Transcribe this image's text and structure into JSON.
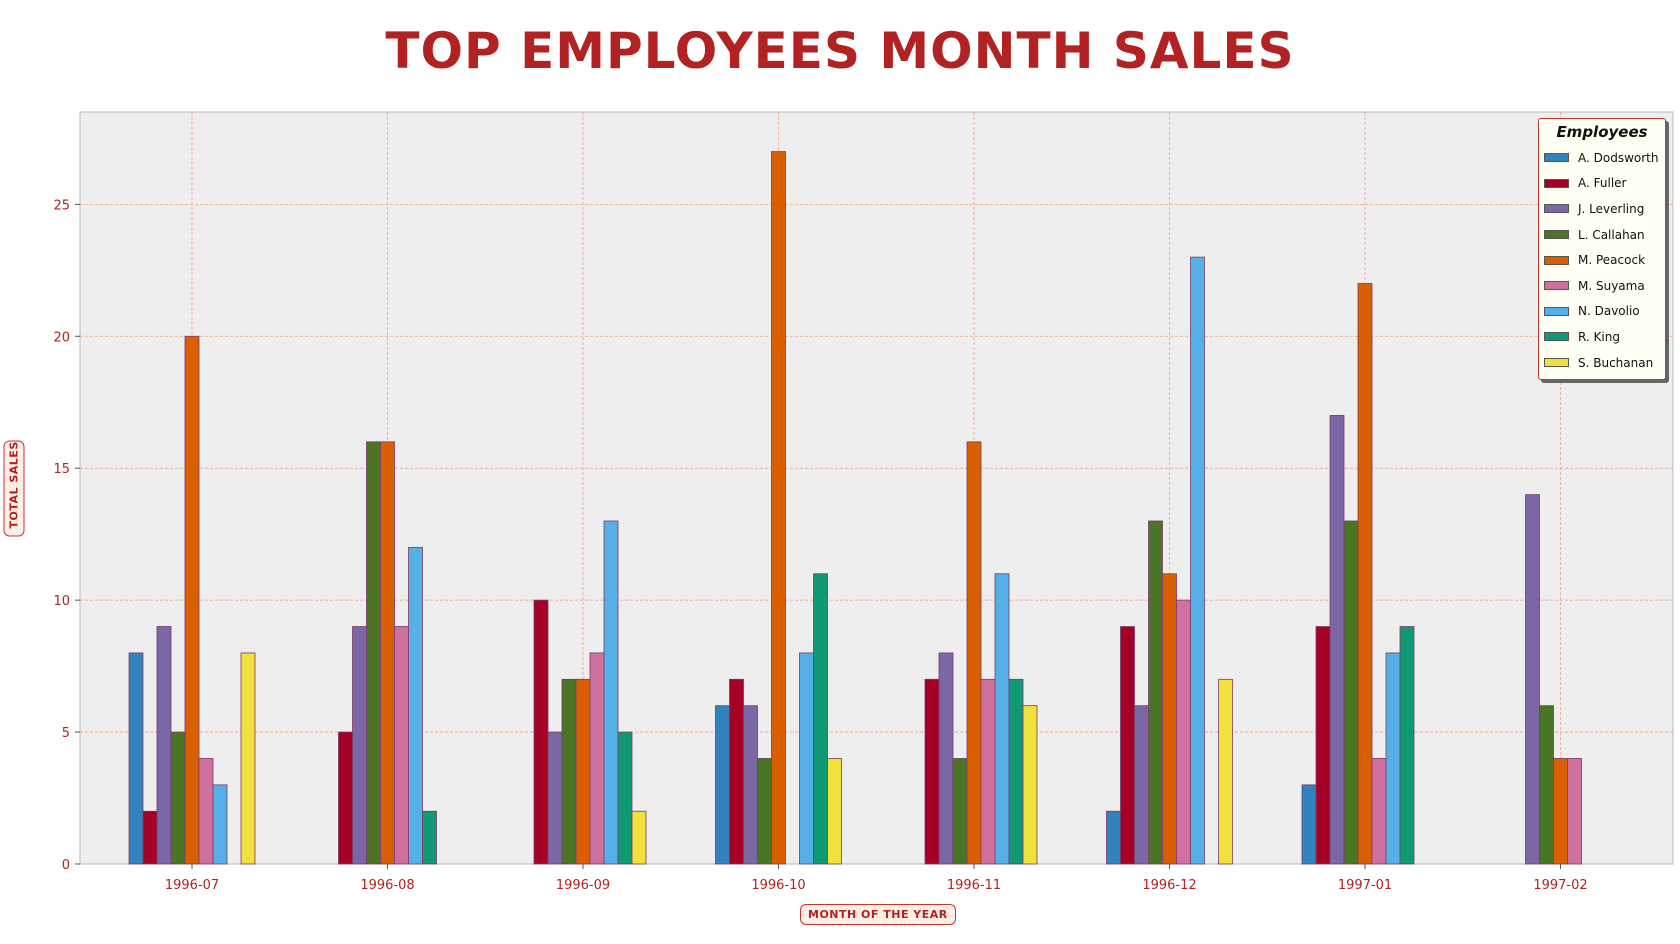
{
  "chart_data": {
    "type": "bar",
    "title": "TOP EMPLOYEES MONTH SALES",
    "xlabel": "MONTH OF THE YEAR",
    "ylabel": "TOTAL SALES",
    "ylim": [
      0,
      28.5
    ],
    "yticks": [
      0,
      5,
      10,
      15,
      20,
      25
    ],
    "grid": true,
    "legend_title": "Employees",
    "legend_position": "top-right",
    "categories": [
      "1996-07",
      "1996-08",
      "1996-09",
      "1996-10",
      "1996-11",
      "1996-12",
      "1997-01",
      "1997-02"
    ],
    "series": [
      {
        "name": "A. Dodsworth",
        "color": "#3182bd",
        "values": [
          8,
          null,
          null,
          6,
          null,
          2,
          3,
          null
        ]
      },
      {
        "name": "A. Fuller",
        "color": "#a50026",
        "values": [
          2,
          5,
          10,
          7,
          7,
          9,
          9,
          null
        ]
      },
      {
        "name": "J. Leverling",
        "color": "#7b67a6",
        "values": [
          9,
          9,
          5,
          6,
          8,
          6,
          17,
          14
        ]
      },
      {
        "name": "L. Callahan",
        "color": "#4a7524",
        "values": [
          5,
          16,
          7,
          4,
          4,
          13,
          13,
          6
        ]
      },
      {
        "name": "M. Peacock",
        "color": "#d95f02",
        "values": [
          20,
          16,
          7,
          27,
          16,
          11,
          22,
          4
        ]
      },
      {
        "name": "M. Suyama",
        "color": "#d0709e",
        "values": [
          4,
          9,
          8,
          null,
          7,
          10,
          4,
          4
        ]
      },
      {
        "name": "N. Davolio",
        "color": "#56b0e8",
        "values": [
          3,
          12,
          13,
          8,
          11,
          23,
          8,
          null
        ]
      },
      {
        "name": "R. King",
        "color": "#0f9a74",
        "values": [
          null,
          2,
          5,
          11,
          7,
          null,
          9,
          null
        ]
      },
      {
        "name": "S. Buchanan",
        "color": "#f2e03c",
        "values": [
          8,
          null,
          2,
          4,
          6,
          7,
          null,
          null
        ]
      }
    ],
    "colors": {
      "plot_background": "#eeeeee",
      "grid": "#f0a080",
      "axis_text": "#b22222",
      "title": "#b22222"
    }
  }
}
